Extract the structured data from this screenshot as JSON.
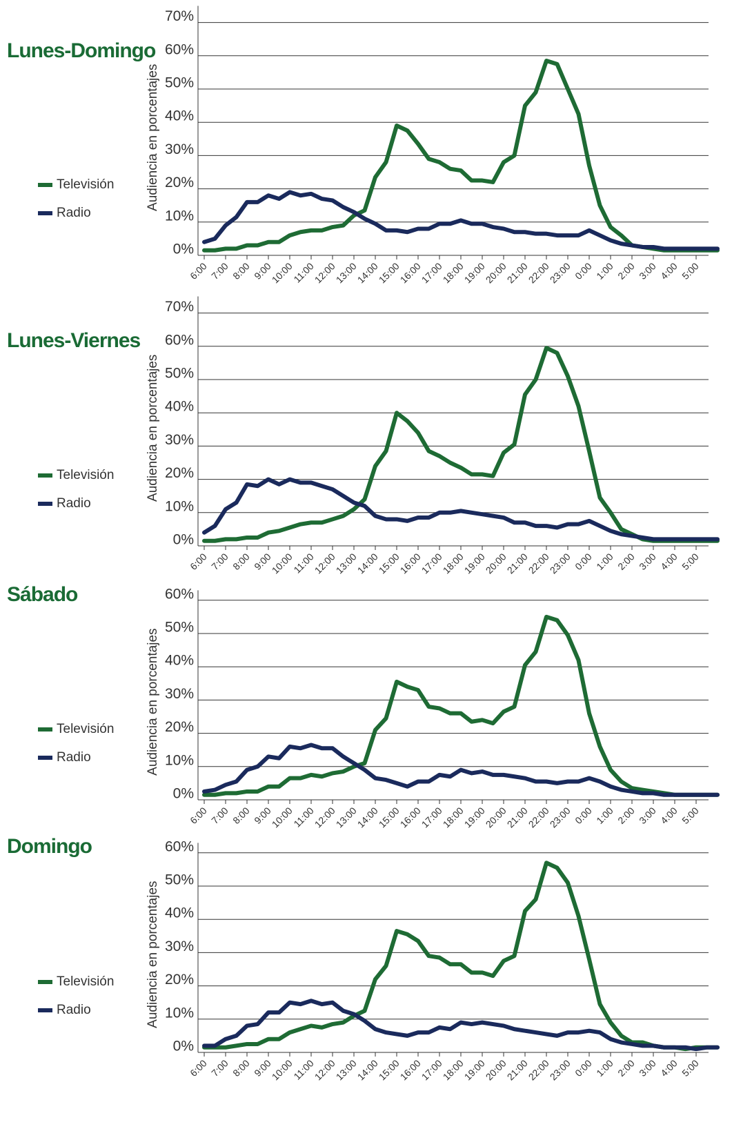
{
  "chart_data": [
    {
      "type": "line",
      "title": "Lunes-Domingo",
      "y_label": "Audiencia en porcentajes",
      "categories": [
        "6:00",
        null,
        "7:00",
        null,
        "8:00",
        null,
        "9:00",
        null,
        "10:00",
        null,
        "11:00",
        null,
        "12:00",
        null,
        "13:00",
        null,
        "14:00",
        null,
        "15:00",
        null,
        "16:00",
        null,
        "17:00",
        null,
        "18:00",
        null,
        "19:00",
        null,
        "20:00",
        null,
        "21:00",
        null,
        "22:00",
        null,
        "23:00",
        null,
        "0:00",
        null,
        "1:00",
        null,
        "2:00",
        null,
        "3:00",
        null,
        "4:00",
        null,
        "5:00",
        null,
        null
      ],
      "series": [
        {
          "name": "Televisión",
          "color": "#1e6b34",
          "values": [
            1.5,
            1.5,
            2,
            2,
            3,
            3,
            4,
            4,
            6,
            7,
            7.5,
            7.5,
            8.5,
            9,
            12,
            13.5,
            23.5,
            28,
            39,
            37.5,
            33.5,
            29,
            28,
            26,
            25.5,
            22.5,
            22.5,
            22,
            28,
            30,
            45,
            49,
            58.5,
            57.5,
            50,
            42.5,
            27,
            15,
            8.5,
            6,
            3,
            2.5,
            2,
            1.5,
            1.5,
            1.5,
            1.5,
            1.5,
            1.5
          ]
        },
        {
          "name": "Radio",
          "color": "#1a2a5c",
          "values": [
            4,
            5,
            9,
            11.5,
            16,
            16,
            18,
            17,
            19,
            18,
            18.5,
            17,
            16.5,
            14.5,
            13,
            11,
            9.5,
            7.5,
            7.5,
            7,
            8,
            8,
            9.5,
            9.5,
            10.5,
            9.5,
            9.5,
            8.5,
            8,
            7,
            7,
            6.5,
            6.5,
            6,
            6,
            6,
            7.5,
            6,
            4.5,
            3.5,
            3,
            2.5,
            2.5,
            2,
            2,
            2,
            2,
            2,
            2
          ]
        }
      ],
      "ylim": [
        0,
        75
      ],
      "yticks": [
        {
          "value": 0,
          "label": "0%"
        },
        {
          "value": 10,
          "label": "10%"
        },
        {
          "value": 20,
          "label": "20%"
        },
        {
          "value": 30,
          "label": "30%"
        },
        {
          "value": 40,
          "label": "40%"
        },
        {
          "value": 50,
          "label": "50%"
        },
        {
          "value": 60,
          "label": "60%"
        },
        {
          "value": 70,
          "label": "70%"
        }
      ],
      "grid": true
    },
    {
      "type": "line",
      "title": "Lunes-Viernes",
      "y_label": "Audiencia en porcentajes",
      "categories": [
        "6:00",
        null,
        "7:00",
        null,
        "8:00",
        null,
        "9:00",
        null,
        "10:00",
        null,
        "11:00",
        null,
        "12:00",
        null,
        "13:00",
        null,
        "14:00",
        null,
        "15:00",
        null,
        "16:00",
        null,
        "17:00",
        null,
        "18:00",
        null,
        "19:00",
        null,
        "20:00",
        null,
        "21:00",
        null,
        "22:00",
        null,
        "23:00",
        null,
        "0:00",
        null,
        "1:00",
        null,
        "2:00",
        null,
        "3:00",
        null,
        "4:00",
        null,
        "5:00",
        null,
        null
      ],
      "series": [
        {
          "name": "Televisión",
          "color": "#1e6b34",
          "values": [
            1.5,
            1.5,
            2,
            2,
            2.5,
            2.5,
            4,
            4.5,
            5.5,
            6.5,
            7,
            7,
            8,
            9,
            11,
            14,
            24,
            28.5,
            40,
            37.5,
            34,
            28.5,
            27,
            25,
            23.5,
            21.5,
            21.5,
            21,
            28,
            30.5,
            45.5,
            50,
            59.5,
            58,
            51,
            42,
            28.5,
            14.5,
            10,
            5,
            3.5,
            2,
            1.5,
            1.5,
            1.5,
            1.5,
            1.5,
            1.5,
            1.5
          ]
        },
        {
          "name": "Radio",
          "color": "#1a2a5c",
          "values": [
            4,
            6,
            11,
            13,
            18.5,
            18,
            20,
            18.5,
            20,
            19,
            19,
            18,
            17,
            15,
            13,
            12,
            9,
            8,
            8,
            7.5,
            8.5,
            8.5,
            10,
            10,
            10.5,
            10,
            9.5,
            9,
            8.5,
            7,
            7,
            6,
            6,
            5.5,
            6.5,
            6.5,
            7.5,
            6,
            4.5,
            3.5,
            3,
            2.5,
            2,
            2,
            2,
            2,
            2,
            2,
            2
          ]
        }
      ],
      "ylim": [
        0,
        75
      ],
      "yticks": [
        {
          "value": 0,
          "label": "0%"
        },
        {
          "value": 10,
          "label": "10%"
        },
        {
          "value": 20,
          "label": "20%"
        },
        {
          "value": 30,
          "label": "30%"
        },
        {
          "value": 40,
          "label": "40%"
        },
        {
          "value": 50,
          "label": "50%"
        },
        {
          "value": 60,
          "label": "60%"
        },
        {
          "value": 70,
          "label": "70%"
        }
      ],
      "grid": true
    },
    {
      "type": "line",
      "title": "Sábado",
      "y_label": "Audiencia en porcentajes",
      "categories": [
        "6:00",
        null,
        "7:00",
        null,
        "8:00",
        null,
        "9:00",
        null,
        "10:00",
        null,
        "11:00",
        null,
        "12:00",
        null,
        "13:00",
        null,
        "14:00",
        null,
        "15:00",
        null,
        "16:00",
        null,
        "17:00",
        null,
        "18:00",
        null,
        "19:00",
        null,
        "20:00",
        null,
        "21:00",
        null,
        "22:00",
        null,
        "23:00",
        null,
        "0:00",
        null,
        "1:00",
        null,
        "2:00",
        null,
        "3:00",
        null,
        "4:00",
        null,
        "5:00",
        null,
        null
      ],
      "series": [
        {
          "name": "Televisión",
          "color": "#1e6b34",
          "values": [
            1.5,
            1.5,
            2,
            2,
            2.5,
            2.5,
            4,
            4,
            6.5,
            6.5,
            7.5,
            7,
            8,
            8.5,
            10,
            11,
            21,
            24.5,
            35.5,
            34,
            33,
            28,
            27.5,
            26,
            26,
            23.5,
            24,
            23,
            26.5,
            28,
            40.5,
            44.5,
            55,
            54,
            49.5,
            42,
            26,
            16,
            9,
            5.5,
            3.5,
            3,
            2.5,
            2,
            1.5,
            1.5,
            1.5,
            1.5,
            1.5
          ]
        },
        {
          "name": "Radio",
          "color": "#1a2a5c",
          "values": [
            2.5,
            3,
            4.5,
            5.5,
            9,
            10,
            13,
            12.5,
            16,
            15.5,
            16.5,
            15.5,
            15.5,
            13,
            11,
            9,
            6.5,
            6,
            5,
            4,
            5.5,
            5.5,
            7.5,
            7,
            9,
            8,
            8.5,
            7.5,
            7.5,
            7,
            6.5,
            5.5,
            5.5,
            5,
            5.5,
            5.5,
            6.5,
            5.5,
            4,
            3,
            2.5,
            2,
            2,
            1.5,
            1.5,
            1.5,
            1.5,
            1.5,
            1.5
          ]
        }
      ],
      "ylim": [
        0,
        63
      ],
      "yticks": [
        {
          "value": 0,
          "label": "0%"
        },
        {
          "value": 10,
          "label": "10%"
        },
        {
          "value": 20,
          "label": "20%"
        },
        {
          "value": 30,
          "label": "30%"
        },
        {
          "value": 40,
          "label": "40%"
        },
        {
          "value": 50,
          "label": "50%"
        },
        {
          "value": 60,
          "label": "60%"
        }
      ],
      "grid": true
    },
    {
      "type": "line",
      "title": "Domingo",
      "y_label": "Audiencia en porcentajes",
      "categories": [
        "6:00",
        null,
        "7:00",
        null,
        "8:00",
        null,
        "9:00",
        null,
        "10:00",
        null,
        "11:00",
        null,
        "12:00",
        null,
        "13:00",
        null,
        "14:00",
        null,
        "15:00",
        null,
        "16:00",
        null,
        "17:00",
        null,
        "18:00",
        null,
        "19:00",
        null,
        "20:00",
        null,
        "21:00",
        null,
        "22:00",
        null,
        "23:00",
        null,
        "0:00",
        null,
        "1:00",
        null,
        "2:00",
        null,
        "3:00",
        null,
        "4:00",
        null,
        "5:00",
        null,
        null
      ],
      "series": [
        {
          "name": "Televisión",
          "color": "#1e6b34",
          "values": [
            1.5,
            1.5,
            1.5,
            2,
            2.5,
            2.5,
            4,
            4,
            6,
            7,
            8,
            7.5,
            8.5,
            9,
            11,
            12.5,
            22,
            26,
            36.5,
            35.5,
            33.5,
            29,
            28.5,
            26.5,
            26.5,
            24,
            24,
            23,
            27.5,
            29,
            42.5,
            46,
            57,
            55.5,
            51,
            41,
            28,
            14.5,
            9,
            5,
            3,
            3,
            2,
            1.5,
            1.5,
            1,
            1.5,
            1.5,
            1.5
          ]
        },
        {
          "name": "Radio",
          "color": "#1a2a5c",
          "values": [
            2,
            2,
            4,
            5,
            8,
            8.5,
            12,
            12,
            15,
            14.5,
            15.5,
            14.5,
            15,
            12.5,
            11.5,
            9.5,
            7,
            6,
            5.5,
            5,
            6,
            6,
            7.5,
            7,
            9,
            8.5,
            9,
            8.5,
            8,
            7,
            6.5,
            6,
            5.5,
            5,
            6,
            6,
            6.5,
            6,
            4,
            3,
            2.5,
            2,
            2,
            1.5,
            1.5,
            1.5,
            1,
            1.5,
            1.5
          ]
        }
      ],
      "ylim": [
        0,
        63
      ],
      "yticks": [
        {
          "value": 0,
          "label": "0%"
        },
        {
          "value": 10,
          "label": "10%"
        },
        {
          "value": 20,
          "label": "20%"
        },
        {
          "value": 30,
          "label": "30%"
        },
        {
          "value": 40,
          "label": "40%"
        },
        {
          "value": 50,
          "label": "50%"
        },
        {
          "value": 60,
          "label": "60%"
        }
      ],
      "grid": true
    }
  ]
}
